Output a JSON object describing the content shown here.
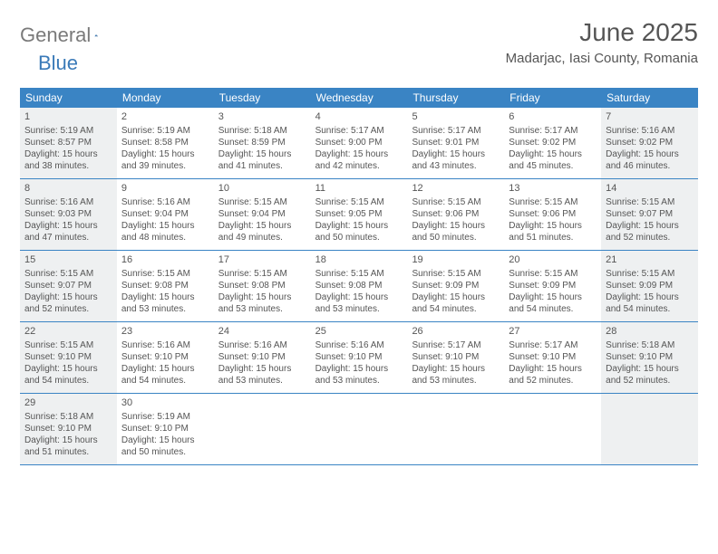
{
  "logo": {
    "text1": "General",
    "text2": "Blue"
  },
  "title": "June 2025",
  "location": "Madarjac, Iasi County, Romania",
  "weekdays": [
    "Sunday",
    "Monday",
    "Tuesday",
    "Wednesday",
    "Thursday",
    "Friday",
    "Saturday"
  ],
  "colors": {
    "headerBg": "#3a84c4",
    "headerText": "#ffffff",
    "rowBorder": "#3a84c4",
    "shadedBg": "#eef0f1",
    "textColor": "#555555"
  },
  "weeks": [
    [
      {
        "n": "1",
        "shaded": true,
        "sr": "Sunrise: 5:19 AM",
        "ss": "Sunset: 8:57 PM",
        "d1": "Daylight: 15 hours",
        "d2": "and 38 minutes."
      },
      {
        "n": "2",
        "shaded": false,
        "sr": "Sunrise: 5:19 AM",
        "ss": "Sunset: 8:58 PM",
        "d1": "Daylight: 15 hours",
        "d2": "and 39 minutes."
      },
      {
        "n": "3",
        "shaded": false,
        "sr": "Sunrise: 5:18 AM",
        "ss": "Sunset: 8:59 PM",
        "d1": "Daylight: 15 hours",
        "d2": "and 41 minutes."
      },
      {
        "n": "4",
        "shaded": false,
        "sr": "Sunrise: 5:17 AM",
        "ss": "Sunset: 9:00 PM",
        "d1": "Daylight: 15 hours",
        "d2": "and 42 minutes."
      },
      {
        "n": "5",
        "shaded": false,
        "sr": "Sunrise: 5:17 AM",
        "ss": "Sunset: 9:01 PM",
        "d1": "Daylight: 15 hours",
        "d2": "and 43 minutes."
      },
      {
        "n": "6",
        "shaded": false,
        "sr": "Sunrise: 5:17 AM",
        "ss": "Sunset: 9:02 PM",
        "d1": "Daylight: 15 hours",
        "d2": "and 45 minutes."
      },
      {
        "n": "7",
        "shaded": true,
        "sr": "Sunrise: 5:16 AM",
        "ss": "Sunset: 9:02 PM",
        "d1": "Daylight: 15 hours",
        "d2": "and 46 minutes."
      }
    ],
    [
      {
        "n": "8",
        "shaded": true,
        "sr": "Sunrise: 5:16 AM",
        "ss": "Sunset: 9:03 PM",
        "d1": "Daylight: 15 hours",
        "d2": "and 47 minutes."
      },
      {
        "n": "9",
        "shaded": false,
        "sr": "Sunrise: 5:16 AM",
        "ss": "Sunset: 9:04 PM",
        "d1": "Daylight: 15 hours",
        "d2": "and 48 minutes."
      },
      {
        "n": "10",
        "shaded": false,
        "sr": "Sunrise: 5:15 AM",
        "ss": "Sunset: 9:04 PM",
        "d1": "Daylight: 15 hours",
        "d2": "and 49 minutes."
      },
      {
        "n": "11",
        "shaded": false,
        "sr": "Sunrise: 5:15 AM",
        "ss": "Sunset: 9:05 PM",
        "d1": "Daylight: 15 hours",
        "d2": "and 50 minutes."
      },
      {
        "n": "12",
        "shaded": false,
        "sr": "Sunrise: 5:15 AM",
        "ss": "Sunset: 9:06 PM",
        "d1": "Daylight: 15 hours",
        "d2": "and 50 minutes."
      },
      {
        "n": "13",
        "shaded": false,
        "sr": "Sunrise: 5:15 AM",
        "ss": "Sunset: 9:06 PM",
        "d1": "Daylight: 15 hours",
        "d2": "and 51 minutes."
      },
      {
        "n": "14",
        "shaded": true,
        "sr": "Sunrise: 5:15 AM",
        "ss": "Sunset: 9:07 PM",
        "d1": "Daylight: 15 hours",
        "d2": "and 52 minutes."
      }
    ],
    [
      {
        "n": "15",
        "shaded": true,
        "sr": "Sunrise: 5:15 AM",
        "ss": "Sunset: 9:07 PM",
        "d1": "Daylight: 15 hours",
        "d2": "and 52 minutes."
      },
      {
        "n": "16",
        "shaded": false,
        "sr": "Sunrise: 5:15 AM",
        "ss": "Sunset: 9:08 PM",
        "d1": "Daylight: 15 hours",
        "d2": "and 53 minutes."
      },
      {
        "n": "17",
        "shaded": false,
        "sr": "Sunrise: 5:15 AM",
        "ss": "Sunset: 9:08 PM",
        "d1": "Daylight: 15 hours",
        "d2": "and 53 minutes."
      },
      {
        "n": "18",
        "shaded": false,
        "sr": "Sunrise: 5:15 AM",
        "ss": "Sunset: 9:08 PM",
        "d1": "Daylight: 15 hours",
        "d2": "and 53 minutes."
      },
      {
        "n": "19",
        "shaded": false,
        "sr": "Sunrise: 5:15 AM",
        "ss": "Sunset: 9:09 PM",
        "d1": "Daylight: 15 hours",
        "d2": "and 54 minutes."
      },
      {
        "n": "20",
        "shaded": false,
        "sr": "Sunrise: 5:15 AM",
        "ss": "Sunset: 9:09 PM",
        "d1": "Daylight: 15 hours",
        "d2": "and 54 minutes."
      },
      {
        "n": "21",
        "shaded": true,
        "sr": "Sunrise: 5:15 AM",
        "ss": "Sunset: 9:09 PM",
        "d1": "Daylight: 15 hours",
        "d2": "and 54 minutes."
      }
    ],
    [
      {
        "n": "22",
        "shaded": true,
        "sr": "Sunrise: 5:15 AM",
        "ss": "Sunset: 9:10 PM",
        "d1": "Daylight: 15 hours",
        "d2": "and 54 minutes."
      },
      {
        "n": "23",
        "shaded": false,
        "sr": "Sunrise: 5:16 AM",
        "ss": "Sunset: 9:10 PM",
        "d1": "Daylight: 15 hours",
        "d2": "and 54 minutes."
      },
      {
        "n": "24",
        "shaded": false,
        "sr": "Sunrise: 5:16 AM",
        "ss": "Sunset: 9:10 PM",
        "d1": "Daylight: 15 hours",
        "d2": "and 53 minutes."
      },
      {
        "n": "25",
        "shaded": false,
        "sr": "Sunrise: 5:16 AM",
        "ss": "Sunset: 9:10 PM",
        "d1": "Daylight: 15 hours",
        "d2": "and 53 minutes."
      },
      {
        "n": "26",
        "shaded": false,
        "sr": "Sunrise: 5:17 AM",
        "ss": "Sunset: 9:10 PM",
        "d1": "Daylight: 15 hours",
        "d2": "and 53 minutes."
      },
      {
        "n": "27",
        "shaded": false,
        "sr": "Sunrise: 5:17 AM",
        "ss": "Sunset: 9:10 PM",
        "d1": "Daylight: 15 hours",
        "d2": "and 52 minutes."
      },
      {
        "n": "28",
        "shaded": true,
        "sr": "Sunrise: 5:18 AM",
        "ss": "Sunset: 9:10 PM",
        "d1": "Daylight: 15 hours",
        "d2": "and 52 minutes."
      }
    ],
    [
      {
        "n": "29",
        "shaded": true,
        "sr": "Sunrise: 5:18 AM",
        "ss": "Sunset: 9:10 PM",
        "d1": "Daylight: 15 hours",
        "d2": "and 51 minutes."
      },
      {
        "n": "30",
        "shaded": false,
        "sr": "Sunrise: 5:19 AM",
        "ss": "Sunset: 9:10 PM",
        "d1": "Daylight: 15 hours",
        "d2": "and 50 minutes."
      },
      {
        "n": "",
        "shaded": false,
        "sr": "",
        "ss": "",
        "d1": "",
        "d2": ""
      },
      {
        "n": "",
        "shaded": false,
        "sr": "",
        "ss": "",
        "d1": "",
        "d2": ""
      },
      {
        "n": "",
        "shaded": false,
        "sr": "",
        "ss": "",
        "d1": "",
        "d2": ""
      },
      {
        "n": "",
        "shaded": false,
        "sr": "",
        "ss": "",
        "d1": "",
        "d2": ""
      },
      {
        "n": "",
        "shaded": true,
        "sr": "",
        "ss": "",
        "d1": "",
        "d2": ""
      }
    ]
  ]
}
